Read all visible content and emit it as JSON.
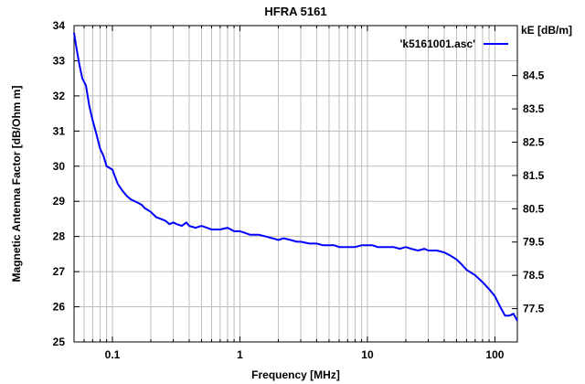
{
  "chart_data": {
    "type": "line",
    "title": "HFRA 5161",
    "xlabel": "Frequency [MHz]",
    "ylabel": "Magnetic Antenna Factor [dB/Ohm m]",
    "y2label": "kE [dB/m]",
    "x_scale": "log",
    "xlim": [
      0.05,
      150
    ],
    "ylim": [
      25,
      34
    ],
    "y2lim": [
      76.5,
      86.0
    ],
    "x_tick_values": [
      0.1,
      1,
      10,
      100
    ],
    "x_tick_labels": [
      "0.1",
      "1",
      "10",
      "100"
    ],
    "y_tick_values": [
      25,
      26,
      27,
      28,
      29,
      30,
      31,
      32,
      33,
      34
    ],
    "y_tick_labels": [
      "25",
      "26",
      "27",
      "28",
      "29",
      "30",
      "31",
      "32",
      "33",
      "34"
    ],
    "y2_tick_values": [
      77.5,
      78.5,
      79.5,
      80.5,
      81.5,
      82.5,
      83.5,
      84.5
    ],
    "y2_tick_labels": [
      "77.5",
      "78.5",
      "79.5",
      "80.5",
      "81.5",
      "82.5",
      "83.5",
      "84.5"
    ],
    "grid": true,
    "legend_position": "top-right",
    "series": [
      {
        "name": "'k5161001.asc'",
        "color": "#0000ff",
        "x": [
          0.05,
          0.052,
          0.055,
          0.058,
          0.062,
          0.066,
          0.07,
          0.075,
          0.08,
          0.085,
          0.09,
          0.095,
          0.1,
          0.105,
          0.11,
          0.12,
          0.13,
          0.14,
          0.15,
          0.16,
          0.17,
          0.18,
          0.19,
          0.2,
          0.22,
          0.24,
          0.26,
          0.28,
          0.3,
          0.32,
          0.35,
          0.38,
          0.4,
          0.45,
          0.5,
          0.55,
          0.6,
          0.65,
          0.7,
          0.8,
          0.9,
          1.0,
          1.1,
          1.2,
          1.4,
          1.6,
          1.8,
          2.0,
          2.2,
          2.5,
          2.8,
          3.0,
          3.5,
          4.0,
          4.5,
          5.0,
          5.5,
          6.0,
          7.0,
          8.0,
          9.0,
          10,
          11,
          12,
          14,
          16,
          18,
          20,
          22,
          25,
          28,
          30,
          35,
          40,
          45,
          50,
          55,
          60,
          70,
          80,
          90,
          100,
          110,
          120,
          130,
          140,
          150
        ],
        "y": [
          33.8,
          33.4,
          32.9,
          32.5,
          32.3,
          31.7,
          31.3,
          30.9,
          30.5,
          30.3,
          30.0,
          29.95,
          29.9,
          29.7,
          29.5,
          29.3,
          29.15,
          29.05,
          29.0,
          28.95,
          28.9,
          28.8,
          28.75,
          28.7,
          28.55,
          28.5,
          28.45,
          28.35,
          28.4,
          28.35,
          28.3,
          28.4,
          28.3,
          28.25,
          28.3,
          28.25,
          28.2,
          28.2,
          28.2,
          28.25,
          28.15,
          28.15,
          28.1,
          28.05,
          28.05,
          28.0,
          27.95,
          27.9,
          27.95,
          27.9,
          27.85,
          27.85,
          27.8,
          27.8,
          27.75,
          27.75,
          27.75,
          27.7,
          27.7,
          27.7,
          27.75,
          27.75,
          27.75,
          27.7,
          27.7,
          27.7,
          27.65,
          27.7,
          27.65,
          27.6,
          27.65,
          27.6,
          27.6,
          27.55,
          27.45,
          27.35,
          27.2,
          27.05,
          26.9,
          26.7,
          26.5,
          26.3,
          26.0,
          25.75,
          25.75,
          25.8,
          25.6
        ]
      }
    ]
  }
}
